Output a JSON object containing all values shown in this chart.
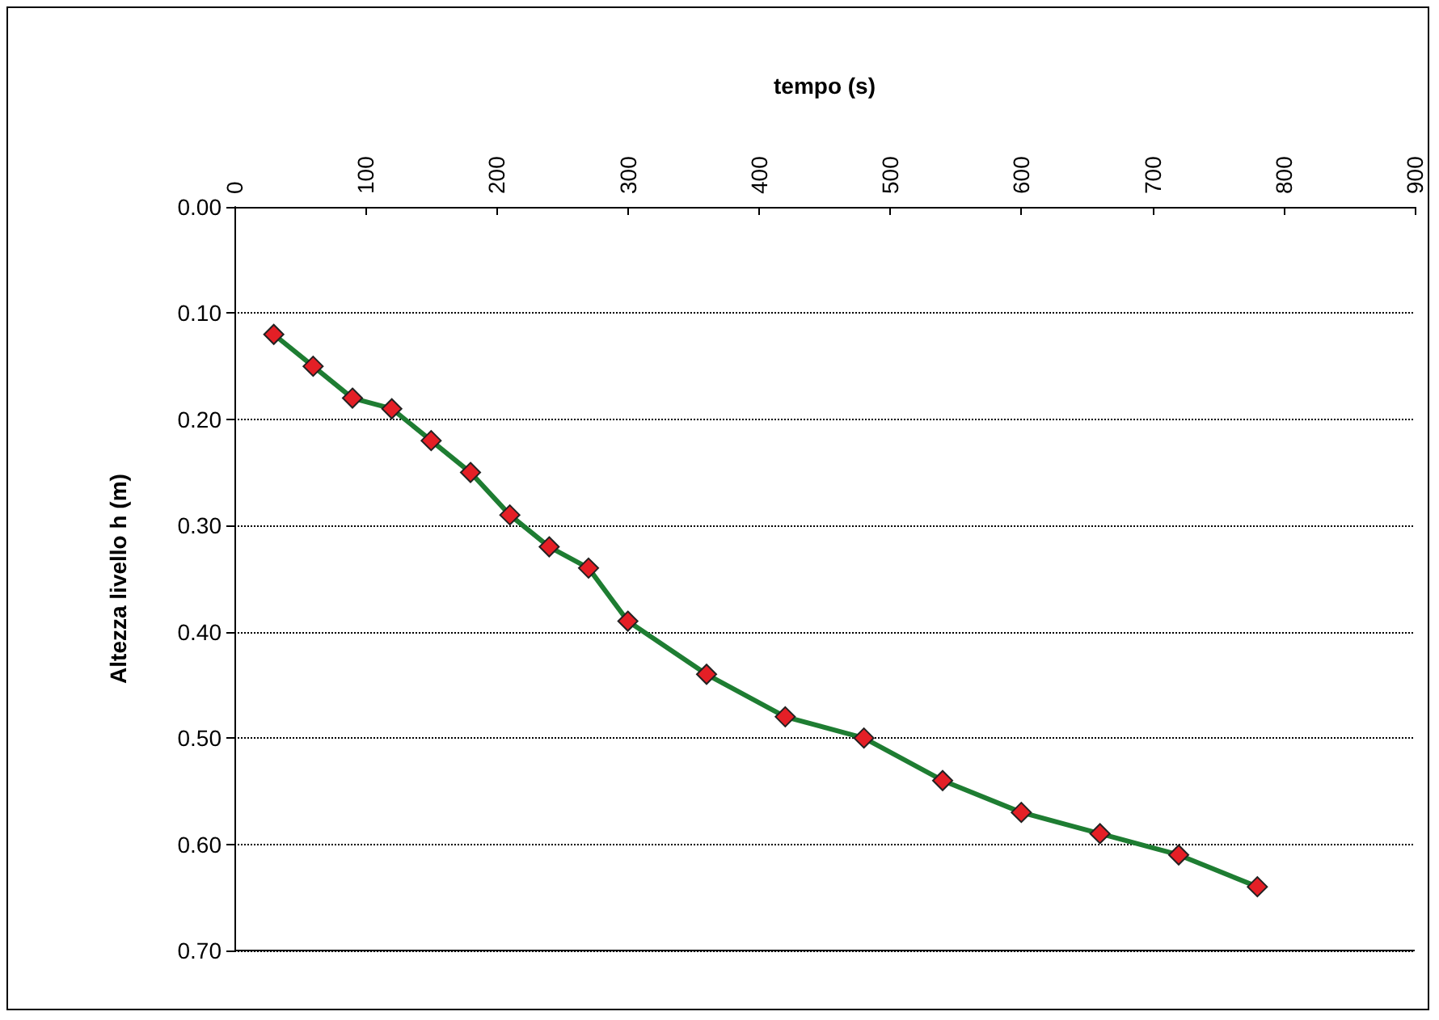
{
  "chart_data": {
    "type": "line",
    "xlabel": "tempo (s)",
    "ylabel": "Altezza livello h (m)",
    "x": [
      30,
      60,
      90,
      120,
      150,
      180,
      210,
      240,
      270,
      300,
      360,
      420,
      480,
      540,
      600,
      660,
      720,
      780
    ],
    "series": [
      {
        "color": "#1e7d32",
        "colors": [
          "#e41f26",
          "#e41f26",
          "#e41f26",
          "#e41f26",
          "#e41f26",
          "#e41f26",
          "#e41f26",
          "#e41f26",
          "#e41f26",
          "#e41f26",
          "#e41f26",
          "#e41f26",
          "#e41f26",
          "#e41f26",
          "#e41f26",
          "#e41f26",
          "#e41f26",
          "#e41f26"
        ],
        "values": [
          0.12,
          0.15,
          0.18,
          0.19,
          0.22,
          0.25,
          0.29,
          0.32,
          0.34,
          0.39,
          0.44,
          0.48,
          0.5,
          0.54,
          0.57,
          0.59,
          0.61,
          0.64
        ]
      }
    ],
    "xlim": [
      0,
      900
    ],
    "xticks": [
      0,
      100,
      200,
      300,
      400,
      500,
      600,
      700,
      800,
      900
    ],
    "ylim": [
      0.7,
      0
    ],
    "yticks": [
      {
        "value": 0,
        "label": "0.00"
      },
      {
        "value": 0.1,
        "label": "0.10"
      },
      {
        "value": 0.2,
        "label": "0.20"
      },
      {
        "value": 0.3,
        "label": "0.30"
      },
      {
        "value": 0.4,
        "label": "0.40"
      },
      {
        "value": 0.5,
        "label": "0.50"
      },
      {
        "value": 0.6,
        "label": "0.60"
      },
      {
        "value": 0.7,
        "label": "0.70"
      }
    ],
    "grid": "y",
    "marker": "diamond",
    "line_style": "solid"
  }
}
